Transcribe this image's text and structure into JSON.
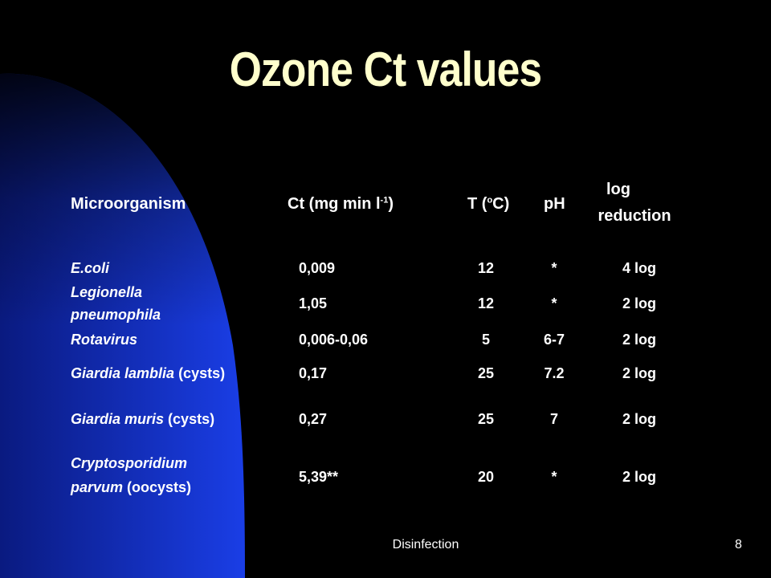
{
  "slide": {
    "title": "Ozone Ct values",
    "footer_text": "Disinfection",
    "page_number": "8"
  },
  "colors": {
    "background": "#000000",
    "swoosh_blue": "#1133dd",
    "title": "#ffffcc",
    "text": "#ffffff"
  },
  "table": {
    "headers": {
      "microorganism": "Microorganism",
      "ct_main": "Ct  (mg min l",
      "ct_sup": "-1",
      "ct_close": ")",
      "t_main": "T (",
      "t_sup": "o",
      "t_close": "C)",
      "ph": "pH",
      "log_line1": "log",
      "log_line2": "reduction"
    },
    "rows": [
      {
        "org_line1": "E.coli",
        "org_line2": "",
        "org_suffix": "",
        "ct": "0,009",
        "t": "12",
        "ph": "*",
        "log": "4 log"
      },
      {
        "org_line1": "Legionella",
        "org_line2": "pneumophila",
        "org_suffix": "",
        "ct": "1,05",
        "t": "12",
        "ph": "*",
        "log": "2 log"
      },
      {
        "org_line1": "Rotavirus",
        "org_line2": "",
        "org_suffix": "",
        "ct": "0,006-0,06",
        "t": "5",
        "ph": "6-7",
        "log": "2 log"
      },
      {
        "org_line1": "Giardia lamblia",
        "org_line2": "",
        "org_suffix": " (cysts)",
        "ct": "0,17",
        "t": "25",
        "ph": "7.2",
        "log": "2 log"
      },
      {
        "org_line1": "Giardia muris",
        "org_line2": "",
        "org_suffix": " (cysts)",
        "ct": "0,27",
        "t": "25",
        "ph": "7",
        "log": "2 log"
      },
      {
        "org_line1": "Cryptosporidium",
        "org_line2": "parvum",
        "org_suffix": " (oocysts)",
        "ct": "5,39**",
        "t": "20",
        "ph": "*",
        "log": "2 log"
      }
    ]
  }
}
